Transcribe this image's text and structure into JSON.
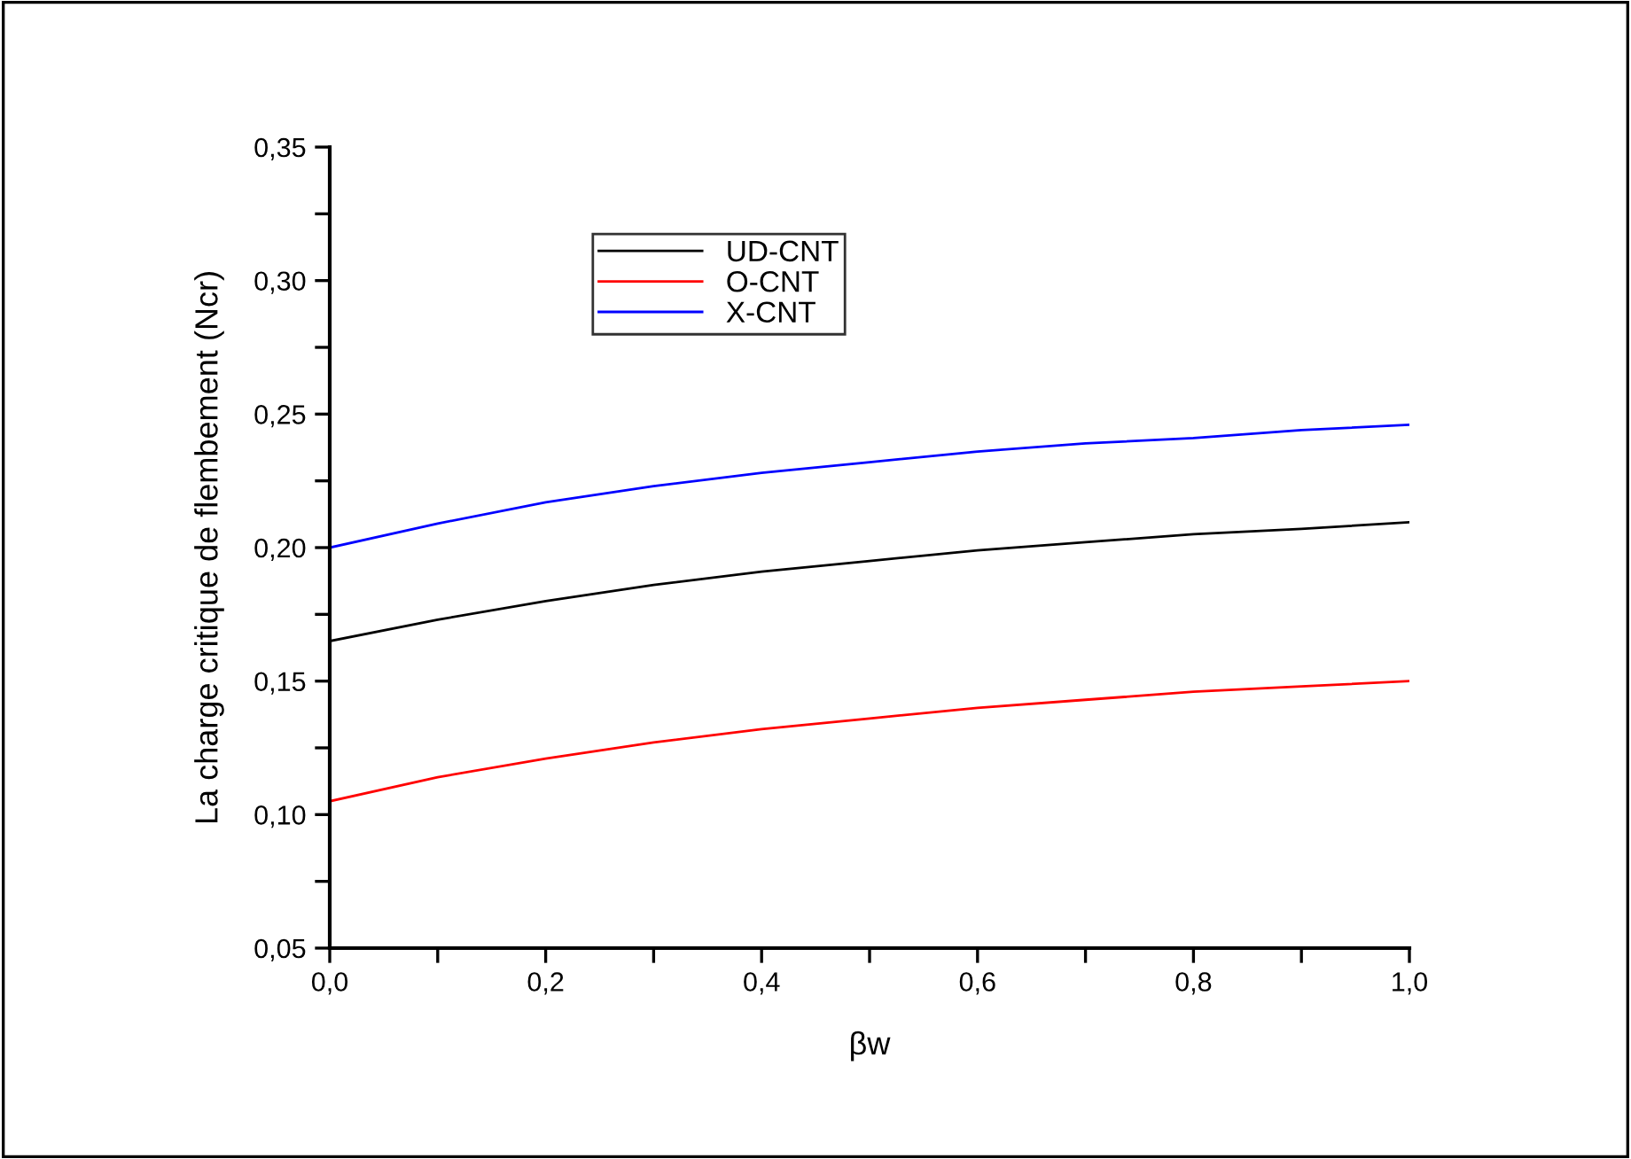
{
  "chart_data": {
    "type": "line",
    "xlabel": "βw",
    "ylabel": "La charge critique de flembement (Ncr)",
    "x": [
      0,
      0.1,
      0.2,
      0.3,
      0.4,
      0.5,
      0.6,
      0.7,
      0.8,
      0.9,
      1.0
    ],
    "series": [
      {
        "name": "UD-CNT",
        "color": "#000000",
        "values": [
          0.165,
          0.173,
          0.18,
          0.186,
          0.191,
          0.195,
          0.199,
          0.202,
          0.205,
          0.207,
          0.2095
        ]
      },
      {
        "name": "O-CNT",
        "color": "#ff0000",
        "values": [
          0.105,
          0.114,
          0.121,
          0.127,
          0.132,
          0.136,
          0.14,
          0.143,
          0.146,
          0.148,
          0.15
        ]
      },
      {
        "name": "X-CNT",
        "color": "#0000ff",
        "values": [
          0.2,
          0.209,
          0.217,
          0.223,
          0.228,
          0.232,
          0.236,
          0.239,
          0.241,
          0.244,
          0.246
        ]
      }
    ],
    "xlim": [
      0,
      1.0
    ],
    "xticks": [
      {
        "value": 0,
        "label": "0,0"
      },
      {
        "value": 0.1,
        "label": null
      },
      {
        "value": 0.2,
        "label": "0,2"
      },
      {
        "value": 0.3,
        "label": null
      },
      {
        "value": 0.4,
        "label": "0,4"
      },
      {
        "value": 0.5,
        "label": null
      },
      {
        "value": 0.6,
        "label": "0,6"
      },
      {
        "value": 0.7,
        "label": null
      },
      {
        "value": 0.8,
        "label": "0,8"
      },
      {
        "value": 0.9,
        "label": null
      },
      {
        "value": 1.0,
        "label": "1,0"
      }
    ],
    "ylim": [
      0.05,
      0.35
    ],
    "yticks": [
      {
        "value": 0.05,
        "label": "0,05"
      },
      {
        "value": 0.075,
        "label": null
      },
      {
        "value": 0.1,
        "label": "0,10"
      },
      {
        "value": 0.125,
        "label": null
      },
      {
        "value": 0.15,
        "label": "0,15"
      },
      {
        "value": 0.175,
        "label": null
      },
      {
        "value": 0.2,
        "label": "0,20"
      },
      {
        "value": 0.225,
        "label": null
      },
      {
        "value": 0.25,
        "label": "0,25"
      },
      {
        "value": 0.275,
        "label": null
      },
      {
        "value": 0.3,
        "label": "0,30"
      },
      {
        "value": 0.325,
        "label": null
      },
      {
        "value": 0.35,
        "label": "0,35"
      }
    ],
    "grid": false,
    "legend": "top left",
    "marker": "none",
    "line_style": "solid"
  }
}
